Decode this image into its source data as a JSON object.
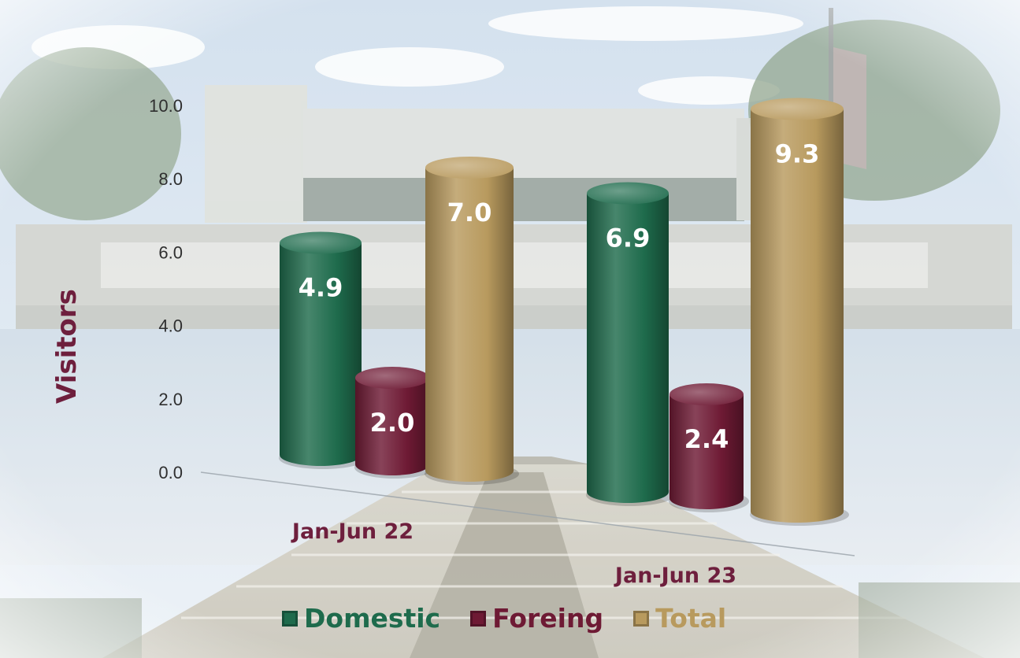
{
  "chart_data": {
    "type": "bar",
    "style": "3d-cylinder",
    "ylabel": "Visitors",
    "ylim": [
      0,
      10
    ],
    "yticks": [
      "0.0",
      "2.0",
      "4.0",
      "6.0",
      "8.0",
      "10.0"
    ],
    "categories": [
      "Jan-Jun 22",
      "Jan-Jun 23"
    ],
    "series": [
      {
        "name": "Domestic",
        "values": [
          4.9,
          6.9
        ],
        "labels": [
          "4.9",
          "6.9"
        ],
        "color": "#1e6b4c"
      },
      {
        "name": "Foreing",
        "values": [
          2.0,
          2.4
        ],
        "labels": [
          "2.0",
          "2.4"
        ],
        "color": "#6e1a34"
      },
      {
        "name": "Total",
        "values": [
          7.0,
          9.3
        ],
        "labels": [
          "7.0",
          "9.3"
        ],
        "color": "#b89a5e"
      }
    ],
    "grid": false,
    "legend_position": "bottom"
  },
  "colors": {
    "axis_label": "#6e1f3d",
    "category_label": "#6e1f3d",
    "tick_label": "#2f2f2f",
    "bar_value_label": "#ffffff"
  },
  "background": {
    "description_icon": "museum-and-pyramid-photo"
  }
}
